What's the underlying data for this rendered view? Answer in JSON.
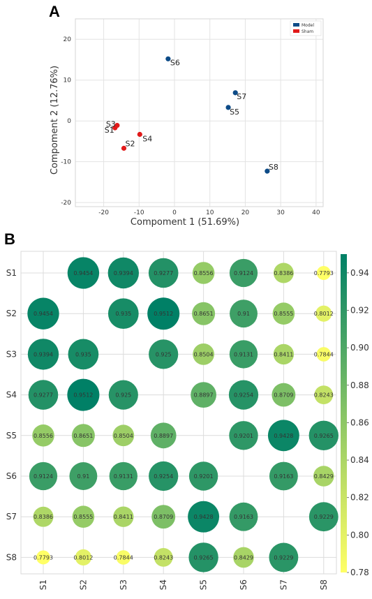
{
  "chart_data": [
    {
      "panel": "A",
      "type": "scatter",
      "xlabel": "Compoment 1 (51.69%)",
      "ylabel": "Compoment 2 (12.76%)",
      "xlim": [
        -28,
        42
      ],
      "ylim": [
        -21,
        25
      ],
      "xticks": [
        -20,
        -10,
        0,
        10,
        20,
        30,
        40
      ],
      "yticks": [
        -20,
        -10,
        0,
        10,
        20
      ],
      "grid": true,
      "legend_position": "top-right",
      "series": [
        {
          "name": "Model",
          "color": "#0d4b87",
          "points": [
            {
              "label": "S5",
              "x": 15.2,
              "y": 3.3
            },
            {
              "label": "S6",
              "x": -1.8,
              "y": 15.2
            },
            {
              "label": "S7",
              "x": 17.2,
              "y": 6.9
            },
            {
              "label": "S8",
              "x": 26.2,
              "y": -12.3
            }
          ]
        },
        {
          "name": "Sham",
          "color": "#e11a1a",
          "points": [
            {
              "label": "S1",
              "x": -16.8,
              "y": -1.7
            },
            {
              "label": "S2",
              "x": -14.3,
              "y": -6.7
            },
            {
              "label": "S3",
              "x": -16.2,
              "y": -1.1
            },
            {
              "label": "S4",
              "x": -9.8,
              "y": -3.3
            }
          ]
        }
      ]
    },
    {
      "panel": "B",
      "type": "heatmap",
      "labels": [
        "S1",
        "S2",
        "S3",
        "S4",
        "S5",
        "S6",
        "S7",
        "S8"
      ],
      "matrix": [
        [
          null,
          0.9454,
          0.9394,
          0.9277,
          0.8556,
          0.9124,
          0.8386,
          0.7793
        ],
        [
          0.9454,
          null,
          0.935,
          0.9512,
          0.8651,
          0.91,
          0.8555,
          0.8012
        ],
        [
          0.9394,
          0.935,
          null,
          0.925,
          0.8504,
          0.9131,
          0.8411,
          0.7844
        ],
        [
          0.9277,
          0.9512,
          0.925,
          null,
          0.8897,
          0.9254,
          0.8709,
          0.8243
        ],
        [
          0.8556,
          0.8651,
          0.8504,
          0.8897,
          null,
          0.9201,
          0.9428,
          0.9265
        ],
        [
          0.9124,
          0.91,
          0.9131,
          0.9254,
          0.9201,
          null,
          0.9163,
          0.8429
        ],
        [
          0.8386,
          0.8555,
          0.8411,
          0.8709,
          0.9428,
          0.9163,
          null,
          0.9229
        ],
        [
          0.7793,
          0.8012,
          0.7844,
          0.8243,
          0.9265,
          0.8429,
          0.9229,
          null
        ]
      ],
      "value_labels": [
        [
          "",
          "0.9454",
          "0.9394",
          "0.9277",
          "0.8556",
          "0.9124",
          "0.8386",
          "0.7793"
        ],
        [
          "0.9454",
          "",
          "0.935",
          "0.9512",
          "0.8651",
          "0.91",
          "0.8555",
          "0.8012"
        ],
        [
          "0.9394",
          "0.935",
          "",
          "0.925",
          "0.8504",
          "0.9131",
          "0.8411",
          "0.7844"
        ],
        [
          "0.9277",
          "0.9512",
          "0.925",
          "",
          "0.8897",
          "0.9254",
          "0.8709",
          "0.8243"
        ],
        [
          "0.8556",
          "0.8651",
          "0.8504",
          "0.8897",
          "",
          "0.9201",
          "0.9428",
          "0.9265"
        ],
        [
          "0.9124",
          "0.91",
          "0.9131",
          "0.9254",
          "0.9201",
          "",
          "0.9163",
          "0.8429"
        ],
        [
          "0.8386",
          "0.8555",
          "0.8411",
          "0.8709",
          "0.9428",
          "0.9163",
          "",
          "0.9229"
        ],
        [
          "0.7793",
          "0.8012",
          "0.7844",
          "0.8243",
          "0.9265",
          "0.8429",
          "0.9229",
          ""
        ]
      ],
      "colorbar": {
        "min": 0.78,
        "max": 0.95,
        "ticks": [
          0.78,
          0.8,
          0.82,
          0.84,
          0.86,
          0.88,
          0.9,
          0.92,
          0.94
        ],
        "tick_labels": [
          "0.78",
          "0.80",
          "0.82",
          "0.84",
          "0.86",
          "0.88",
          "0.90",
          "0.92",
          "0.94"
        ],
        "colormap": "summer_r (yellow to teal-green)"
      },
      "grid": true
    }
  ],
  "panels": {
    "a_letter": "A",
    "b_letter": "B"
  }
}
